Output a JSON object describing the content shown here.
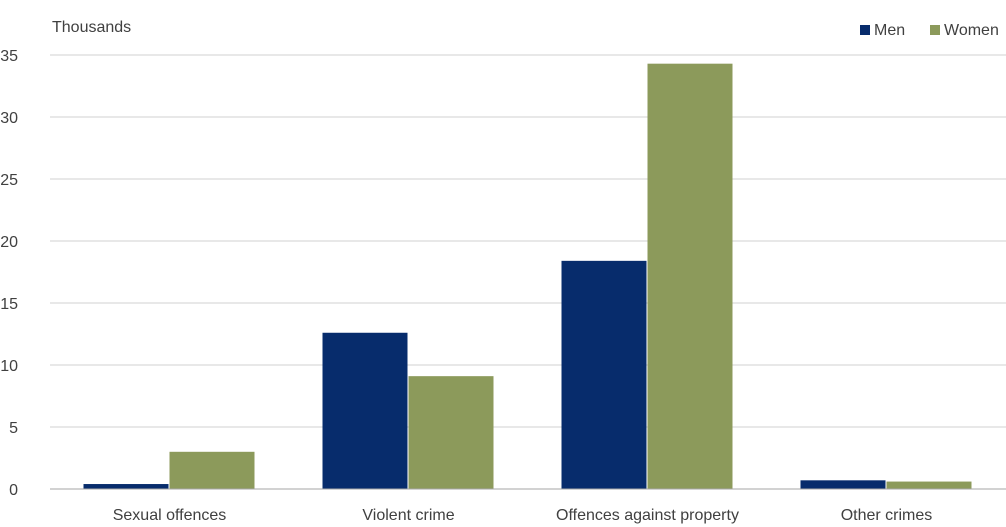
{
  "chart_data": {
    "type": "bar",
    "ylabel": "Thousands",
    "categories": [
      "Sexual offences",
      "Violent crime",
      "Offences against property",
      "Other crimes"
    ],
    "series": [
      {
        "name": "Men",
        "color": "#072c6c",
        "values": [
          0.4,
          12.6,
          18.4,
          0.7
        ]
      },
      {
        "name": "Women",
        "color": "#8c9a5b",
        "values": [
          3.0,
          9.1,
          34.3,
          0.6
        ]
      }
    ],
    "ylim": [
      0,
      35
    ],
    "yticks": [
      0,
      5,
      10,
      15,
      20,
      25,
      30,
      35
    ],
    "grid": true,
    "legend_position": "top-right"
  }
}
